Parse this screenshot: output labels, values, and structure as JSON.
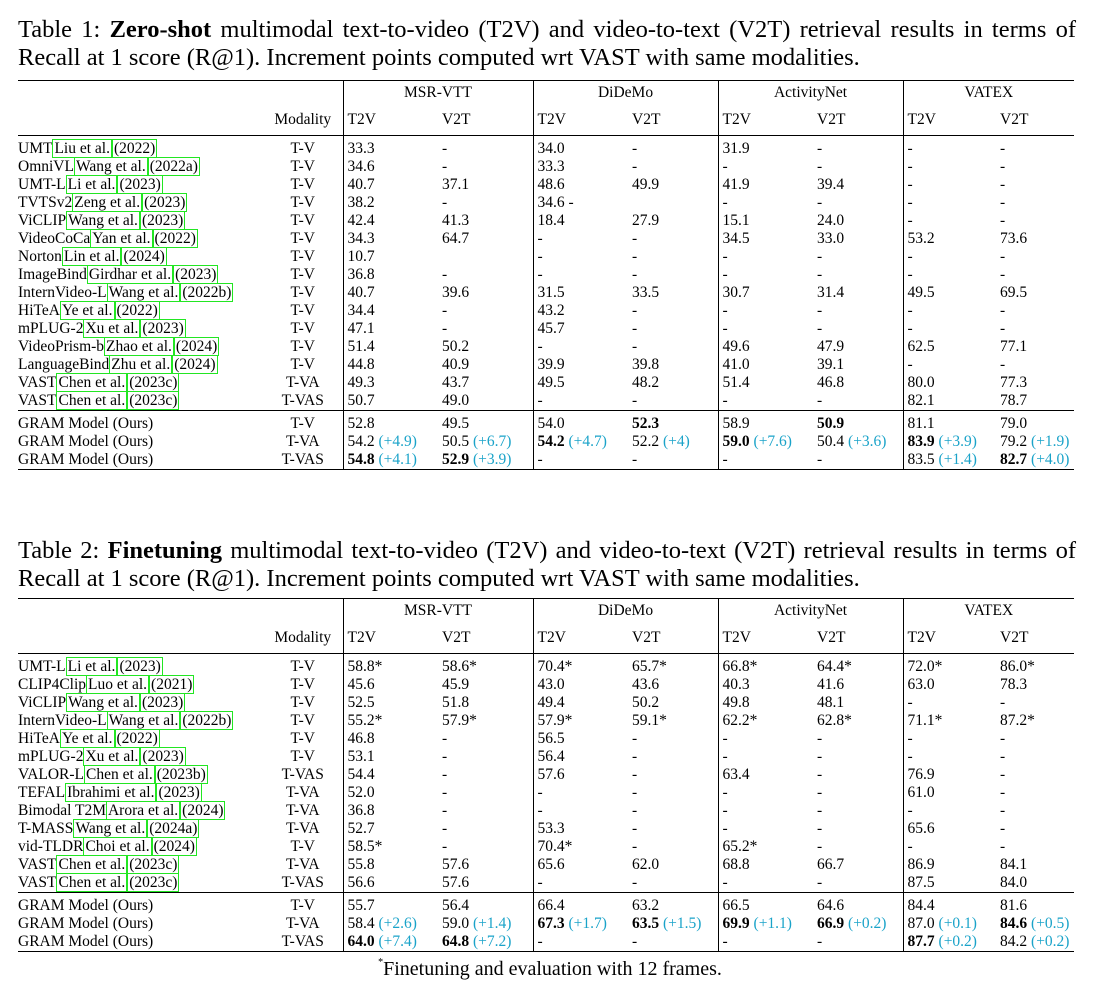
{
  "table1": {
    "caption_prefix": "Table 1: ",
    "caption_bold": "Zero-shot",
    "caption_text": " multimodal text-to-video (T2V) and video-to-text (V2T) retrieval results in terms of Recall at 1 score (R@1). Increment points computed wrt VAST with same modalities.",
    "header": {
      "modality": "Modality",
      "groups": [
        "MSR-VTT",
        "DiDeMo",
        "ActivityNet",
        "VATEX"
      ],
      "sub": [
        "T2V",
        "V2T",
        "T2V",
        "V2T",
        "T2V",
        "V2T",
        "T2V",
        "V2T"
      ]
    },
    "rows": [
      {
        "m": "UMT",
        "c": "Liu et al.",
        "y": "2022",
        "mod": "T-V",
        "v": [
          "33.3",
          "-",
          "34.0",
          "-",
          "31.9",
          "-",
          "-",
          "-"
        ]
      },
      {
        "m": "OmniVL",
        "c": "Wang et al.",
        "y": "2022a",
        "mod": "T-V",
        "v": [
          "34.6",
          "-",
          "33.3",
          "-",
          "-",
          "-",
          "-",
          "-"
        ]
      },
      {
        "m": "UMT-L",
        "c": "Li et al.",
        "y": "2023",
        "mod": "T-V",
        "v": [
          "40.7",
          "37.1",
          "48.6",
          "49.9",
          "41.9",
          "39.4",
          "-",
          "-"
        ]
      },
      {
        "m": "TVTSv2",
        "c": "Zeng et al.",
        "y": "2023",
        "mod": "T-V",
        "v": [
          "38.2",
          "-",
          "34.6 -",
          "",
          "-",
          "-",
          "-",
          "-"
        ]
      },
      {
        "m": "ViCLIP",
        "c": "Wang et al.",
        "y": "2023",
        "mod": "T-V",
        "v": [
          "42.4",
          "41.3",
          "18.4",
          "27.9",
          "15.1",
          "24.0",
          "-",
          "-"
        ]
      },
      {
        "m": "VideoCoCa",
        "c": "Yan et al.",
        "y": "2022",
        "mod": "T-V",
        "v": [
          "34.3",
          "64.7",
          "-",
          "-",
          "34.5",
          "33.0",
          "53.2",
          "73.6"
        ]
      },
      {
        "m": "Norton",
        "c": "Lin et al.",
        "y": "2024",
        "mod": "T-V",
        "v": [
          "10.7",
          "",
          "-",
          "-",
          "-",
          "-",
          "-",
          "-"
        ]
      },
      {
        "m": "ImageBind",
        "c": "Girdhar et al.",
        "y": "2023",
        "mod": "T-V",
        "v": [
          "36.8",
          "-",
          "-",
          "-",
          "-",
          "-",
          "-",
          "-"
        ]
      },
      {
        "m": "InternVideo-L",
        "c": "Wang et al.",
        "y": "2022b",
        "mod": "T-V",
        "v": [
          "40.7",
          "39.6",
          "31.5",
          "33.5",
          "30.7",
          "31.4",
          "49.5",
          "69.5"
        ]
      },
      {
        "m": "HiTeA",
        "c": "Ye et al.",
        "y": "2022",
        "mod": "T-V",
        "v": [
          "34.4",
          "-",
          "43.2",
          "-",
          "-",
          "-",
          "-",
          "-"
        ]
      },
      {
        "m": "mPLUG-2",
        "c": "Xu et al.",
        "y": "2023",
        "mod": "T-V",
        "v": [
          "47.1",
          "-",
          "45.7",
          "-",
          "-",
          "-",
          "-",
          "-"
        ]
      },
      {
        "m": "VideoPrism-b",
        "c": "Zhao et al.",
        "y": "2024",
        "mod": "T-V",
        "v": [
          "51.4",
          "50.2",
          "-",
          "-",
          "49.6",
          "47.9",
          "62.5",
          "77.1"
        ]
      },
      {
        "m": "LanguageBind",
        "c": "Zhu et al.",
        "y": "2024",
        "mod": "T-V",
        "v": [
          "44.8",
          "40.9",
          "39.9",
          "39.8",
          "41.0",
          "39.1",
          "-",
          "-"
        ]
      },
      {
        "m": "VAST",
        "c": "Chen et al.",
        "y": "2023c",
        "mod": "T-VA",
        "v": [
          "49.3",
          "43.7",
          "49.5",
          "48.2",
          "51.4",
          "46.8",
          "80.0",
          "77.3"
        ]
      },
      {
        "m": "VAST",
        "c": "Chen et al.",
        "y": "2023c",
        "mod": "T-VAS",
        "v": [
          "50.7",
          "49.0",
          "-",
          "-",
          "-",
          "-",
          "82.1",
          "78.7"
        ]
      }
    ],
    "ours": [
      {
        "name": "GRAM Model (Ours)",
        "mod": "T-V",
        "v": [
          [
            "52.8",
            "",
            false
          ],
          [
            "49.5",
            "",
            false
          ],
          [
            "54.0",
            "",
            false
          ],
          [
            "52.3",
            "",
            true
          ],
          [
            "58.9",
            "",
            false
          ],
          [
            "50.9",
            "",
            true
          ],
          [
            "81.1",
            "",
            false
          ],
          [
            "79.0",
            "",
            false
          ]
        ]
      },
      {
        "name": "GRAM Model (Ours)",
        "mod": "T-VA",
        "v": [
          [
            "54.2",
            "(+4.9)",
            false
          ],
          [
            "50.5",
            "(+6.7)",
            false
          ],
          [
            "54.2",
            "(+4.7)",
            true
          ],
          [
            "52.2",
            "(+4)",
            false
          ],
          [
            "59.0",
            "(+7.6)",
            true
          ],
          [
            "50.4",
            "(+3.6)",
            false
          ],
          [
            "83.9",
            "(+3.9)",
            true
          ],
          [
            "79.2",
            "(+1.9)",
            false
          ]
        ]
      },
      {
        "name": "GRAM Model (Ours)",
        "mod": "T-VAS",
        "v": [
          [
            "54.8",
            "(+4.1)",
            true
          ],
          [
            "52.9",
            "(+3.9)",
            true
          ],
          [
            "-",
            "",
            false
          ],
          [
            "-",
            "",
            false
          ],
          [
            "-",
            "",
            false
          ],
          [
            "-",
            "",
            false
          ],
          [
            "83.5",
            "(+1.4)",
            false
          ],
          [
            "82.7",
            "(+4.0)",
            true
          ]
        ]
      }
    ]
  },
  "table2": {
    "caption_prefix": "Table 2: ",
    "caption_bold": "Finetuning",
    "caption_text": " multimodal text-to-video (T2V) and video-to-text (V2T) retrieval results in terms of Recall at 1 score (R@1). Increment points computed wrt VAST with same modalities.",
    "header": {
      "modality": "Modality",
      "groups": [
        "MSR-VTT",
        "DiDeMo",
        "ActivityNet",
        "VATEX"
      ],
      "sub": [
        "T2V",
        "V2T",
        "T2V",
        "V2T",
        "T2V",
        "V2T",
        "T2V",
        "V2T"
      ]
    },
    "rows": [
      {
        "m": "UMT-L",
        "c": "Li et al.",
        "y": "2023",
        "mod": "T-V",
        "v": [
          "58.8*",
          "58.6*",
          "70.4*",
          "65.7*",
          "66.8*",
          "64.4*",
          "72.0*",
          "86.0*"
        ]
      },
      {
        "m": "CLIP4Clip",
        "c": "Luo et al.",
        "y": "2021",
        "mod": "T-V",
        "v": [
          "45.6",
          "45.9",
          "43.0",
          "43.6",
          "40.3",
          "41.6",
          "63.0",
          "78.3"
        ]
      },
      {
        "m": "ViCLIP",
        "c": "Wang et al.",
        "y": "2023",
        "mod": "T-V",
        "v": [
          "52.5",
          "51.8",
          "49.4",
          "50.2",
          "49.8",
          "48.1",
          "-",
          "-"
        ]
      },
      {
        "m": "InternVideo-L",
        "c": "Wang et al.",
        "y": "2022b",
        "mod": "T-V",
        "v": [
          "55.2*",
          "57.9*",
          "57.9*",
          "59.1*",
          "62.2*",
          "62.8*",
          "71.1*",
          "87.2*"
        ]
      },
      {
        "m": "HiTeA",
        "c": "Ye et al.",
        "y": "2022",
        "mod": "T-V",
        "v": [
          "46.8",
          "-",
          "56.5",
          "-",
          "-",
          "-",
          "-",
          "-"
        ]
      },
      {
        "m": "mPLUG-2",
        "c": "Xu et al.",
        "y": "2023",
        "mod": "T-V",
        "v": [
          "53.1",
          "-",
          "56.4",
          "-",
          "-",
          "-",
          "-",
          "-"
        ]
      },
      {
        "m": "VALOR-L",
        "c": "Chen et al.",
        "y": "2023b",
        "mod": "T-VAS",
        "v": [
          "54.4",
          "-",
          "57.6",
          "-",
          "63.4",
          "-",
          "76.9",
          "-"
        ]
      },
      {
        "m": "TEFAL",
        "c": "Ibrahimi et al.",
        "y": "2023",
        "mod": "T-VA",
        "v": [
          "52.0",
          "-",
          "-",
          "-",
          "-",
          "-",
          "61.0",
          "-"
        ]
      },
      {
        "m": "Bimodal T2M",
        "c": "Arora et al.",
        "y": "2024",
        "mod": "T-VA",
        "v": [
          "36.8",
          "-",
          "-",
          "-",
          "-",
          "-",
          "-",
          "-"
        ]
      },
      {
        "m": "T-MASS",
        "c": "Wang et al.",
        "y": "2024a",
        "mod": "T-VA",
        "v": [
          "52.7",
          "-",
          "53.3",
          "-",
          "-",
          "-",
          "65.6",
          "-"
        ]
      },
      {
        "m": "vid-TLDR",
        "c": "Choi et al.",
        "y": "2024",
        "mod": "T-V",
        "v": [
          "58.5*",
          "-",
          "70.4*",
          "-",
          "65.2*",
          "-",
          "-",
          "-"
        ]
      },
      {
        "m": "VAST",
        "c": "Chen et al.",
        "y": "2023c",
        "mod": "T-VA",
        "v": [
          "55.8",
          "57.6",
          "65.6",
          "62.0",
          "68.8",
          "66.7",
          "86.9",
          "84.1"
        ]
      },
      {
        "m": "VAST",
        "c": "Chen et al.",
        "y": "2023c",
        "mod": "T-VAS",
        "v": [
          "56.6",
          "57.6",
          "-",
          "-",
          "-",
          "-",
          "87.5",
          "84.0"
        ]
      }
    ],
    "ours": [
      {
        "name": "GRAM Model (Ours)",
        "mod": "T-V",
        "v": [
          [
            "55.7",
            "",
            false
          ],
          [
            "56.4",
            "",
            false
          ],
          [
            "66.4",
            "",
            false
          ],
          [
            "63.2",
            "",
            false
          ],
          [
            "66.5",
            "",
            false
          ],
          [
            "64.6",
            "",
            false
          ],
          [
            "84.4",
            "",
            false
          ],
          [
            "81.6",
            "",
            false
          ]
        ]
      },
      {
        "name": "GRAM Model (Ours)",
        "mod": "T-VA",
        "v": [
          [
            "58.4",
            "(+2.6)",
            false
          ],
          [
            "59.0",
            "(+1.4)",
            false
          ],
          [
            "67.3",
            "(+1.7)",
            true
          ],
          [
            "63.5",
            "(+1.5)",
            true
          ],
          [
            "69.9",
            "(+1.1)",
            true
          ],
          [
            "66.9",
            "(+0.2)",
            true
          ],
          [
            "87.0",
            "(+0.1)",
            false
          ],
          [
            "84.6",
            "(+0.5)",
            true
          ]
        ]
      },
      {
        "name": "GRAM Model (Ours)",
        "mod": "T-VAS",
        "v": [
          [
            "64.0",
            "(+7.4)",
            true
          ],
          [
            "64.8",
            "(+7.2)",
            true
          ],
          [
            "-",
            "",
            false
          ],
          [
            "-",
            "",
            false
          ],
          [
            "-",
            "",
            false
          ],
          [
            "-",
            "",
            false
          ],
          [
            "87.7",
            "(+0.2)",
            true
          ],
          [
            "84.2",
            "(+0.2)",
            false
          ]
        ]
      }
    ]
  },
  "footnote": {
    "mark": "*",
    "text": "Finetuning and evaluation with 12 frames."
  }
}
